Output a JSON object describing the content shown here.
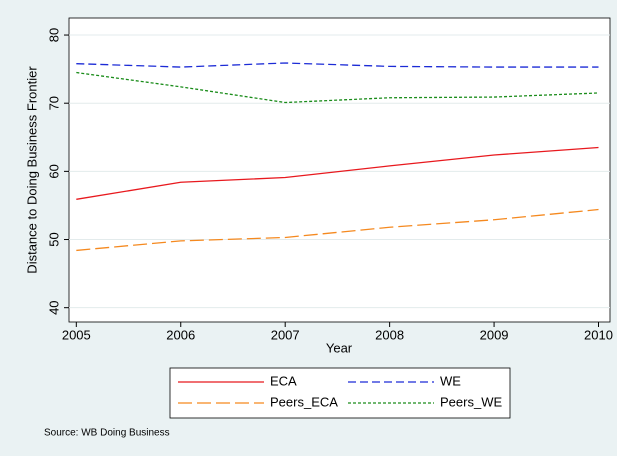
{
  "chart_data": {
    "type": "line",
    "x": [
      2005,
      2006,
      2007,
      2008,
      2009,
      2010
    ],
    "xlim": [
      2004.93,
      2010.11
    ],
    "xticks": [
      2005,
      2006,
      2007,
      2008,
      2009,
      2010
    ],
    "ylim": [
      37.9,
      82.5
    ],
    "yticks": [
      40,
      50,
      60,
      70,
      80
    ],
    "xlabel": "Year",
    "ylabel": "Distance to Doing Business Frontier",
    "grid": true,
    "legend": "bottom",
    "series": [
      {
        "name": "ECA",
        "color": "#e8191e",
        "dash": "solid",
        "values": [
          55.9,
          58.4,
          59.1,
          60.8,
          62.4,
          63.5
        ]
      },
      {
        "name": "WE",
        "color": "#1c2bd6",
        "dash": "dash",
        "values": [
          75.8,
          75.3,
          75.9,
          75.4,
          75.3,
          75.3
        ]
      },
      {
        "name": "Peers_ECA",
        "color": "#f5891f",
        "dash": "longdash",
        "values": [
          48.4,
          49.8,
          50.3,
          51.8,
          52.9,
          54.4
        ]
      },
      {
        "name": "Peers_WE",
        "color": "#1a8c1a",
        "dash": "dot",
        "values": [
          74.5,
          72.4,
          70.1,
          70.8,
          70.9,
          71.5
        ]
      }
    ],
    "note": "Source: WB Doing Business"
  }
}
